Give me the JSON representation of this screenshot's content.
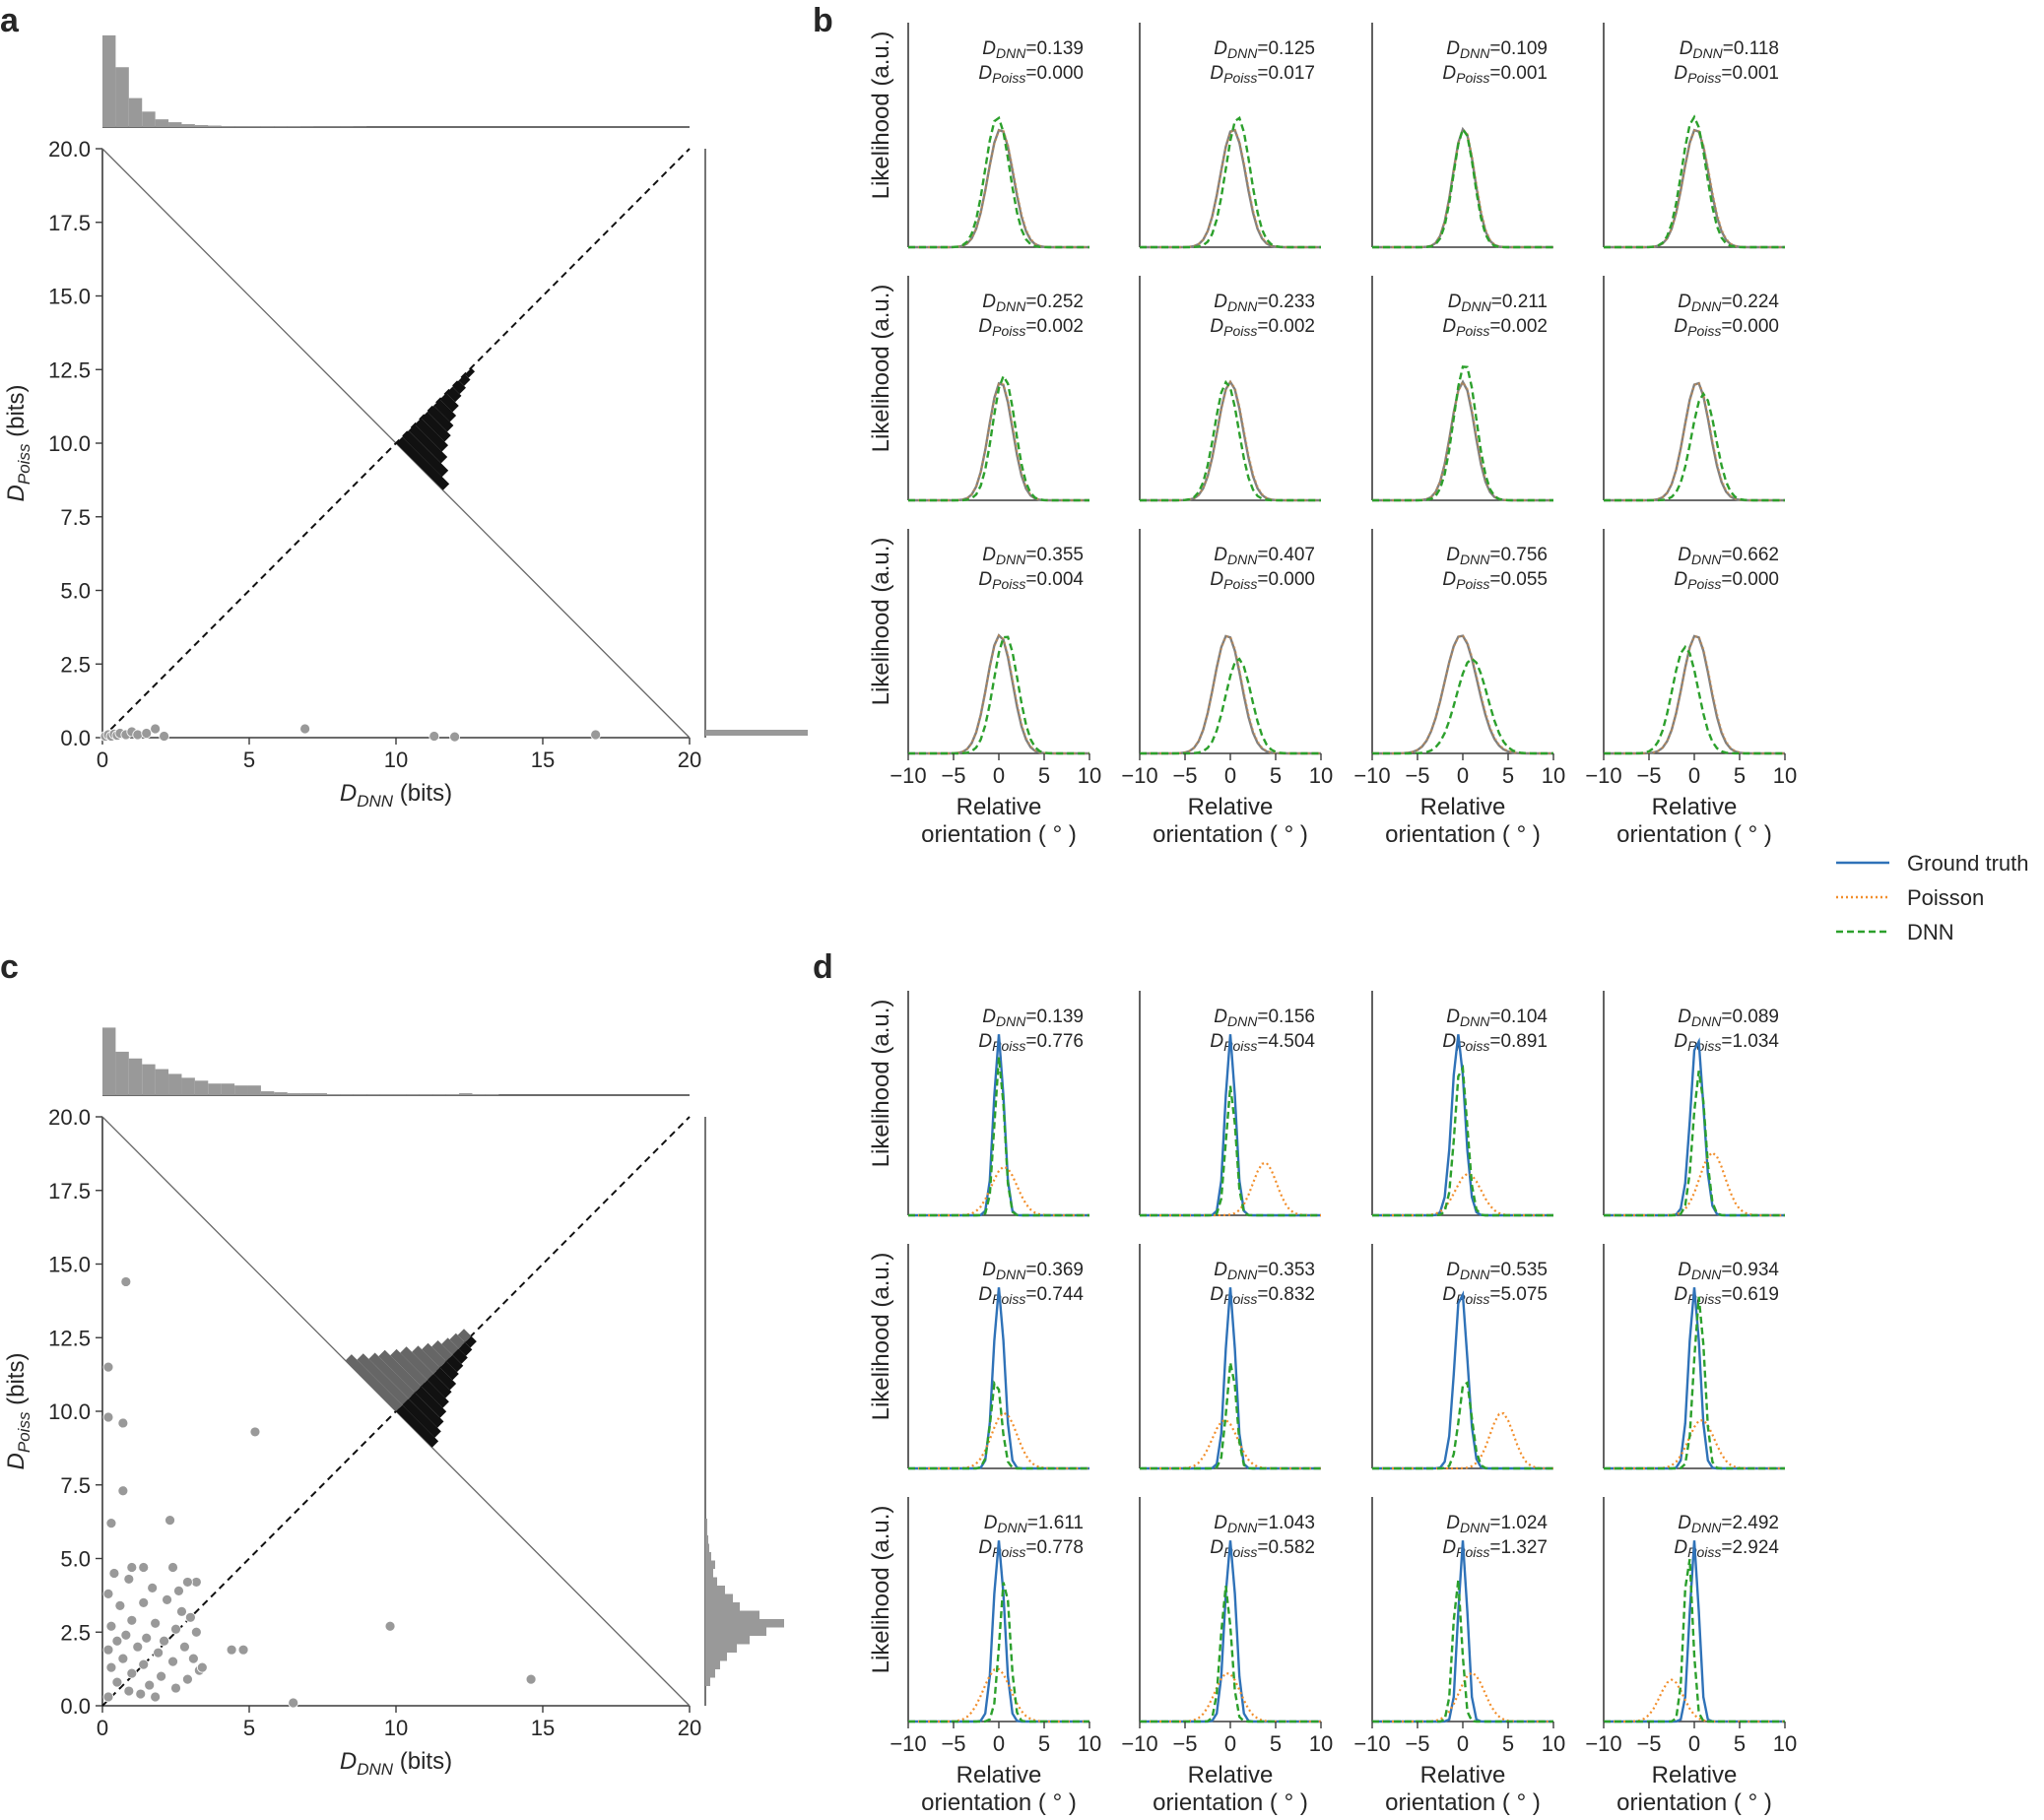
{
  "figure": {
    "panel_labels": [
      "a",
      "b",
      "c",
      "d"
    ],
    "legend": [
      {
        "name": "Ground truth",
        "color": "#2f72b8",
        "style": "solid"
      },
      {
        "name": "Poisson",
        "color": "#f28e2b",
        "style": "dotted"
      },
      {
        "name": "DNN",
        "color": "#2ca02c",
        "style": "dashed"
      }
    ]
  },
  "chart_data": [
    {
      "panel": "a",
      "type": "scatter",
      "xlabel_main": "D",
      "xlabel_sub": "DNN",
      "xlabel_unit": " (bits)",
      "ylabel_main": "D",
      "ylabel_sub": "Poiss",
      "ylabel_unit": " (bits)",
      "xlim": [
        0,
        20
      ],
      "ylim": [
        0,
        20
      ],
      "xticks": [
        "0",
        "5",
        "10",
        "15",
        "20"
      ],
      "yticks": [
        "0.0",
        "2.5",
        "5.0",
        "7.5",
        "10.0",
        "12.5",
        "15.0",
        "17.5",
        "20.0"
      ],
      "points": [
        [
          0.1,
          0.05
        ],
        [
          0.2,
          0.1
        ],
        [
          0.3,
          0.05
        ],
        [
          0.4,
          0.12
        ],
        [
          0.5,
          0.08
        ],
        [
          0.6,
          0.15
        ],
        [
          0.8,
          0.1
        ],
        [
          1.0,
          0.2
        ],
        [
          1.2,
          0.1
        ],
        [
          1.5,
          0.15
        ],
        [
          1.8,
          0.3
        ],
        [
          2.1,
          0.05
        ],
        [
          6.9,
          0.3
        ],
        [
          11.3,
          0.05
        ],
        [
          12.0,
          0.03
        ],
        [
          16.8,
          0.1
        ]
      ],
      "top_hist": [
        0.95,
        0.62,
        0.3,
        0.16,
        0.08,
        0.05,
        0.03,
        0.02,
        0.015,
        0.01,
        0.01,
        0.008,
        0.006,
        0.005,
        0.005,
        0.004,
        0.003,
        0.003,
        0.003,
        0.002
      ],
      "right_hist_note": "single bin near 0",
      "diff_hist_dnn": [
        0.26,
        0.22,
        0.18,
        0.15,
        0.13,
        0.11,
        0.09,
        0.07,
        0.05,
        0.04,
        0.03,
        0.02
      ],
      "diff_hist_poiss": [
        0.0
      ]
    },
    {
      "panel": "c",
      "type": "scatter",
      "xlabel_main": "D",
      "xlabel_sub": "DNN",
      "xlabel_unit": " (bits)",
      "ylabel_main": "D",
      "ylabel_sub": "Poiss",
      "ylabel_unit": " (bits)",
      "xlim": [
        0,
        20
      ],
      "ylim": [
        0,
        20
      ],
      "xticks": [
        "0",
        "5",
        "10",
        "15",
        "20"
      ],
      "yticks": [
        "0.0",
        "2.5",
        "5.0",
        "7.5",
        "10.0",
        "12.5",
        "15.0",
        "17.5",
        "20.0"
      ],
      "points": [
        [
          0.2,
          11.5
        ],
        [
          0.2,
          9.8
        ],
        [
          0.7,
          9.6
        ],
        [
          0.8,
          14.4
        ],
        [
          0.7,
          7.3
        ],
        [
          0.3,
          6.2
        ],
        [
          2.3,
          6.3
        ],
        [
          5.2,
          9.3
        ],
        [
          9.8,
          2.7
        ],
        [
          14.6,
          0.9
        ],
        [
          6.5,
          0.1
        ],
        [
          4.4,
          1.9
        ],
        [
          3.2,
          4.2
        ],
        [
          2.9,
          4.2
        ],
        [
          1.0,
          4.7
        ],
        [
          1.4,
          4.7
        ],
        [
          2.4,
          4.7
        ],
        [
          0.4,
          4.5
        ],
        [
          0.9,
          4.3
        ],
        [
          1.7,
          4.0
        ],
        [
          2.2,
          3.6
        ],
        [
          0.2,
          3.8
        ],
        [
          1.4,
          3.5
        ],
        [
          2.7,
          3.2
        ],
        [
          0.6,
          3.4
        ],
        [
          3.0,
          3.0
        ],
        [
          1.0,
          2.9
        ],
        [
          1.8,
          2.8
        ],
        [
          2.5,
          2.6
        ],
        [
          0.3,
          2.7
        ],
        [
          3.2,
          2.5
        ],
        [
          0.8,
          2.4
        ],
        [
          1.5,
          2.3
        ],
        [
          2.1,
          2.2
        ],
        [
          0.5,
          2.2
        ],
        [
          2.8,
          2.0
        ],
        [
          1.2,
          2.0
        ],
        [
          0.2,
          1.9
        ],
        [
          1.9,
          1.8
        ],
        [
          3.1,
          1.6
        ],
        [
          0.7,
          1.6
        ],
        [
          2.4,
          1.5
        ],
        [
          1.4,
          1.4
        ],
        [
          0.3,
          1.3
        ],
        [
          3.3,
          1.2
        ],
        [
          1.0,
          1.1
        ],
        [
          2.0,
          1.0
        ],
        [
          2.9,
          0.9
        ],
        [
          0.5,
          0.8
        ],
        [
          1.6,
          0.7
        ],
        [
          2.5,
          0.6
        ],
        [
          0.9,
          0.5
        ],
        [
          1.3,
          0.4
        ],
        [
          0.2,
          0.3
        ],
        [
          1.8,
          0.3
        ],
        [
          4.8,
          1.9
        ],
        [
          3.4,
          1.3
        ],
        [
          2.6,
          3.9
        ]
      ],
      "top_hist": [
        0.7,
        0.45,
        0.38,
        0.32,
        0.27,
        0.22,
        0.18,
        0.15,
        0.12,
        0.12,
        0.1,
        0.1,
        0.04,
        0.03,
        0.02,
        0.02,
        0.02,
        0.01,
        0.01,
        0.01,
        0.01,
        0.01,
        0.01,
        0.01,
        0.01,
        0.01,
        0.01,
        0.02,
        0.01,
        0.01
      ],
      "right_hist": [
        0.05,
        0.1,
        0.15,
        0.22,
        0.32,
        0.45,
        0.62,
        0.8,
        0.55,
        0.35,
        0.28,
        0.2,
        0.12,
        0.08,
        0.1,
        0.06,
        0.04,
        0.03,
        0.02,
        0.02
      ],
      "diff_hist_dnn": [
        0.2,
        0.18,
        0.16,
        0.14,
        0.12,
        0.1,
        0.09,
        0.07,
        0.06,
        0.05,
        0.04,
        0.03
      ],
      "diff_hist_poiss": [
        0.28,
        0.25,
        0.22,
        0.2,
        0.17,
        0.15,
        0.12,
        0.1,
        0.08,
        0.06,
        0.05,
        0.04
      ]
    },
    {
      "panel": "b",
      "type": "line",
      "xlabel_line1": "Relative",
      "xlabel_line2": "orientation ( ° )",
      "ylabel": "Likelihood (a.u.)",
      "xlim": [
        -10,
        10
      ],
      "xticks": [
        "−10",
        "−5",
        "0",
        "5",
        "10"
      ],
      "subplots": [
        {
          "d_dnn": "0.139",
          "d_poiss": "0.000",
          "mu_gt": 0.2,
          "w_gt": 1.4,
          "dnn_shift": -0.6,
          "dnn_h": 1.1
        },
        {
          "d_dnn": "0.125",
          "d_poiss": "0.017",
          "mu_gt": 0.3,
          "w_gt": 1.4,
          "dnn_shift": 0.9,
          "dnn_h": 1.1
        },
        {
          "d_dnn": "0.109",
          "d_poiss": "0.001",
          "mu_gt": 0.1,
          "w_gt": 1.2,
          "dnn_shift": 0.0,
          "dnn_h": 1.0
        },
        {
          "d_dnn": "0.118",
          "d_poiss": "0.001",
          "mu_gt": 0.2,
          "w_gt": 1.4,
          "dnn_shift": -0.4,
          "dnn_h": 1.1
        },
        {
          "d_dnn": "0.252",
          "d_poiss": "0.002",
          "mu_gt": 0.2,
          "w_gt": 1.3,
          "dnn_shift": 0.6,
          "dnn_h": 1.05
        },
        {
          "d_dnn": "0.233",
          "d_poiss": "0.002",
          "mu_gt": 0.0,
          "w_gt": 1.4,
          "dnn_shift": -0.7,
          "dnn_h": 1.0
        },
        {
          "d_dnn": "0.211",
          "d_poiss": "0.002",
          "mu_gt": 0.0,
          "w_gt": 1.3,
          "dnn_shift": 0.4,
          "dnn_h": 1.15
        },
        {
          "d_dnn": "0.224",
          "d_poiss": "0.000",
          "mu_gt": 0.3,
          "w_gt": 1.4,
          "dnn_shift": 1.2,
          "dnn_h": 0.9
        },
        {
          "d_dnn": "0.355",
          "d_poiss": "0.004",
          "mu_gt": 0.1,
          "w_gt": 1.4,
          "dnn_shift": 1.1,
          "dnn_h": 1.0
        },
        {
          "d_dnn": "0.407",
          "d_poiss": "0.000",
          "mu_gt": -0.3,
          "w_gt": 1.5,
          "dnn_shift": 2.0,
          "dnn_h": 0.8
        },
        {
          "d_dnn": "0.756",
          "d_poiss": "0.055",
          "mu_gt": -0.2,
          "w_gt": 1.8,
          "dnn_shift": 2.0,
          "dnn_h": 0.8
        },
        {
          "d_dnn": "0.662",
          "d_poiss": "0.000",
          "mu_gt": 0.2,
          "w_gt": 1.5,
          "dnn_shift": -2.0,
          "dnn_h": 0.9
        }
      ]
    },
    {
      "panel": "d",
      "type": "line",
      "xlabel_line1": "Relative",
      "xlabel_line2": "orientation ( ° )",
      "ylabel": "Likelihood (a.u.)",
      "xlim": [
        -10,
        10
      ],
      "xticks": [
        "−10",
        "−5",
        "0",
        "5",
        "10"
      ],
      "subplots": [
        {
          "d_dnn": "0.139",
          "d_poiss": "0.776",
          "mu_gt": 0.0,
          "w_gt": 0.55,
          "mu_p": 0.6,
          "w_p": 1.4,
          "h_p": 0.35,
          "dnn_shift": 0.1,
          "dnn_h": 0.88
        },
        {
          "d_dnn": "0.156",
          "d_poiss": "4.504",
          "mu_gt": 0.0,
          "w_gt": 0.55,
          "mu_p": 3.8,
          "w_p": 1.3,
          "h_p": 0.38,
          "dnn_shift": 0.1,
          "dnn_h": 0.72
        },
        {
          "d_dnn": "0.104",
          "d_poiss": "0.891",
          "mu_gt": -0.5,
          "w_gt": 0.7,
          "mu_p": 0.6,
          "w_p": 1.4,
          "h_p": 0.3,
          "dnn_shift": 0.5,
          "dnn_h": 0.85
        },
        {
          "d_dnn": "0.089",
          "d_poiss": "1.034",
          "mu_gt": 0.3,
          "w_gt": 0.7,
          "mu_p": 2.0,
          "w_p": 1.4,
          "h_p": 0.45,
          "dnn_shift": 0.4,
          "dnn_h": 0.8
        },
        {
          "d_dnn": "0.369",
          "d_poiss": "0.744",
          "mu_gt": 0.0,
          "w_gt": 0.6,
          "mu_p": 0.6,
          "w_p": 1.4,
          "h_p": 0.4,
          "dnn_shift": -0.5,
          "dnn_h": 0.5
        },
        {
          "d_dnn": "0.353",
          "d_poiss": "0.832",
          "mu_gt": 0.0,
          "w_gt": 0.55,
          "mu_p": -0.6,
          "w_p": 1.4,
          "h_p": 0.35,
          "dnn_shift": 0.2,
          "dnn_h": 0.6
        },
        {
          "d_dnn": "0.535",
          "d_poiss": "5.075",
          "mu_gt": -0.2,
          "w_gt": 0.7,
          "mu_p": 4.3,
          "w_p": 1.3,
          "h_p": 0.4,
          "dnn_shift": 0.8,
          "dnn_h": 0.5
        },
        {
          "d_dnn": "0.934",
          "d_poiss": "0.619",
          "mu_gt": 0.0,
          "w_gt": 0.6,
          "mu_p": 0.8,
          "w_p": 1.4,
          "h_p": 0.35,
          "dnn_shift": 0.9,
          "dnn_h": 0.95
        },
        {
          "d_dnn": "1.611",
          "d_poiss": "0.778",
          "mu_gt": 0.0,
          "w_gt": 0.6,
          "mu_p": -0.2,
          "w_p": 1.5,
          "h_p": 0.38,
          "dnn_shift": 1.1,
          "dnn_h": 0.8
        },
        {
          "d_dnn": "1.043",
          "d_poiss": "0.582",
          "mu_gt": 0.0,
          "w_gt": 0.6,
          "mu_p": -0.3,
          "w_p": 1.4,
          "h_p": 0.35,
          "dnn_shift": -0.8,
          "dnn_h": 0.75
        },
        {
          "d_dnn": "1.024",
          "d_poiss": "1.327",
          "mu_gt": 0.0,
          "w_gt": 0.5,
          "mu_p": 1.0,
          "w_p": 1.4,
          "h_p": 0.35,
          "dnn_shift": -1.0,
          "dnn_h": 0.8
        },
        {
          "d_dnn": "2.492",
          "d_poiss": "2.924",
          "mu_gt": 0.0,
          "w_gt": 0.5,
          "mu_p": -2.5,
          "w_p": 1.3,
          "h_p": 0.3,
          "dnn_shift": -1.1,
          "dnn_h": 0.95
        }
      ]
    }
  ]
}
